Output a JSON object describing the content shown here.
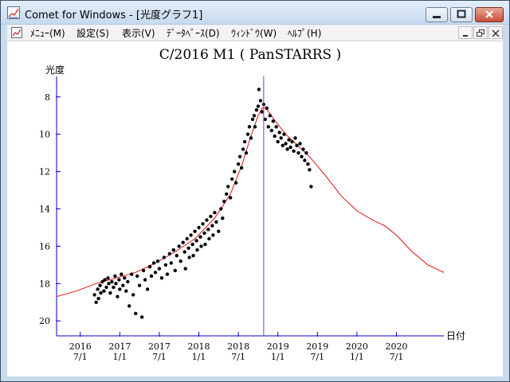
{
  "window": {
    "title": "Comet for Windows - [光度グラフ1]",
    "icon": "chart-app-icon",
    "controls": [
      "minimize-icon",
      "maximize-icon",
      "close-icon"
    ]
  },
  "menu": {
    "items": [
      "ﾒﾆｭｰ(M)",
      "設定(S)",
      "表示(V)",
      "ﾃﾞｰﾀﾍﾞｰｽ(D)",
      "ｳｨﾝﾄﾞｳ(W)",
      "ﾍﾙﾌﾟ(H)"
    ],
    "mdi_controls": [
      "mdi-minimize-icon",
      "mdi-restore-icon",
      "mdi-close-icon"
    ]
  },
  "chart_data": {
    "type": "scatter",
    "title": "C/2016 M1 ( PanSTARRS )",
    "ylabel": "光度",
    "xlabel": "日付",
    "y_inverted": true,
    "ylim": [
      20.8,
      6.9
    ],
    "xlim": [
      2016.0,
      2020.9
    ],
    "y_ticks": [
      "8",
      "10",
      "12",
      "14",
      "16",
      "18",
      "20"
    ],
    "x_tick_labels": [
      [
        "2016",
        "7/1"
      ],
      [
        "2017",
        "1/1"
      ],
      [
        "2017",
        "7/1"
      ],
      [
        "2018",
        "1/1"
      ],
      [
        "2018",
        "7/1"
      ],
      [
        "2019",
        "1/1"
      ],
      [
        "2019",
        "7/1"
      ],
      [
        "2020",
        "1/1"
      ],
      [
        "2020",
        "7/1"
      ]
    ],
    "marker_date": 2018.62,
    "colors": {
      "points": "#000000",
      "curve": "#e01010",
      "marker": "#8a2be2",
      "axes": "#0000cc"
    },
    "observations": [
      [
        2016.48,
        18.6
      ],
      [
        2016.5,
        19.0
      ],
      [
        2016.52,
        18.3
      ],
      [
        2016.53,
        18.8
      ],
      [
        2016.55,
        18.1
      ],
      [
        2016.56,
        18.5
      ],
      [
        2016.58,
        17.9
      ],
      [
        2016.6,
        18.4
      ],
      [
        2016.61,
        17.8
      ],
      [
        2016.63,
        18.2
      ],
      [
        2016.65,
        17.7
      ],
      [
        2016.66,
        18.0
      ],
      [
        2016.68,
        18.5
      ],
      [
        2016.7,
        17.9
      ],
      [
        2016.72,
        18.2
      ],
      [
        2016.74,
        17.6
      ],
      [
        2016.75,
        18.0
      ],
      [
        2016.77,
        18.7
      ],
      [
        2016.79,
        17.8
      ],
      [
        2016.8,
        18.3
      ],
      [
        2016.82,
        17.5
      ],
      [
        2016.84,
        18.1
      ],
      [
        2016.86,
        17.7
      ],
      [
        2016.88,
        18.4
      ],
      [
        2016.9,
        17.9
      ],
      [
        2016.92,
        19.2
      ],
      [
        2016.95,
        17.5
      ],
      [
        2016.97,
        18.6
      ],
      [
        2017.0,
        19.6
      ],
      [
        2017.02,
        17.6
      ],
      [
        2017.05,
        18.1
      ],
      [
        2017.08,
        19.8
      ],
      [
        2017.1,
        17.3
      ],
      [
        2017.12,
        17.8
      ],
      [
        2017.15,
        18.3
      ],
      [
        2017.18,
        17.1
      ],
      [
        2017.2,
        17.6
      ],
      [
        2017.23,
        16.9
      ],
      [
        2017.25,
        17.4
      ],
      [
        2017.28,
        16.8
      ],
      [
        2017.3,
        17.2
      ],
      [
        2017.33,
        17.7
      ],
      [
        2017.36,
        16.6
      ],
      [
        2017.38,
        17.0
      ],
      [
        2017.4,
        17.5
      ],
      [
        2017.43,
        16.4
      ],
      [
        2017.45,
        16.9
      ],
      [
        2017.48,
        16.2
      ],
      [
        2017.5,
        17.3
      ],
      [
        2017.52,
        16.5
      ],
      [
        2017.55,
        16.0
      ],
      [
        2017.57,
        16.8
      ],
      [
        2017.6,
        15.8
      ],
      [
        2017.62,
        16.3
      ],
      [
        2017.63,
        17.2
      ],
      [
        2017.65,
        15.6
      ],
      [
        2017.67,
        16.1
      ],
      [
        2017.68,
        16.6
      ],
      [
        2017.7,
        15.4
      ],
      [
        2017.72,
        15.9
      ],
      [
        2017.73,
        16.5
      ],
      [
        2017.75,
        15.2
      ],
      [
        2017.77,
        15.7
      ],
      [
        2017.78,
        16.2
      ],
      [
        2017.8,
        15.0
      ],
      [
        2017.82,
        15.5
      ],
      [
        2017.83,
        16.0
      ],
      [
        2017.85,
        14.8
      ],
      [
        2017.87,
        15.3
      ],
      [
        2017.88,
        15.9
      ],
      [
        2017.9,
        14.6
      ],
      [
        2017.92,
        15.1
      ],
      [
        2017.93,
        15.6
      ],
      [
        2017.95,
        14.4
      ],
      [
        2017.97,
        14.9
      ],
      [
        2017.98,
        15.4
      ],
      [
        2018.0,
        14.2
      ],
      [
        2018.02,
        14.7
      ],
      [
        2018.05,
        15.2
      ],
      [
        2018.08,
        14.0
      ],
      [
        2018.1,
        14.5
      ],
      [
        2018.12,
        13.6
      ],
      [
        2018.15,
        13.2
      ],
      [
        2018.17,
        12.8
      ],
      [
        2018.2,
        13.4
      ],
      [
        2018.22,
        12.4
      ],
      [
        2018.25,
        12.0
      ],
      [
        2018.27,
        12.6
      ],
      [
        2018.3,
        11.6
      ],
      [
        2018.32,
        11.2
      ],
      [
        2018.34,
        11.8
      ],
      [
        2018.36,
        10.8
      ],
      [
        2018.38,
        10.4
      ],
      [
        2018.4,
        11.0
      ],
      [
        2018.42,
        10.0
      ],
      [
        2018.44,
        9.6
      ],
      [
        2018.46,
        10.2
      ],
      [
        2018.48,
        9.2
      ],
      [
        2018.5,
        9.0
      ],
      [
        2018.51,
        9.6
      ],
      [
        2018.53,
        8.7
      ],
      [
        2018.55,
        8.5
      ],
      [
        2018.56,
        7.6
      ],
      [
        2018.58,
        8.2
      ],
      [
        2018.6,
        8.8
      ],
      [
        2018.62,
        8.4
      ],
      [
        2018.64,
        9.2
      ],
      [
        2018.66,
        8.6
      ],
      [
        2018.68,
        9.6
      ],
      [
        2018.7,
        9.0
      ],
      [
        2018.72,
        9.8
      ],
      [
        2018.74,
        9.3
      ],
      [
        2018.76,
        10.1
      ],
      [
        2018.78,
        9.6
      ],
      [
        2018.8,
        10.4
      ],
      [
        2018.82,
        9.9
      ],
      [
        2018.84,
        10.2
      ],
      [
        2018.86,
        10.6
      ],
      [
        2018.88,
        10.0
      ],
      [
        2018.9,
        10.5
      ],
      [
        2018.92,
        10.8
      ],
      [
        2018.94,
        10.3
      ],
      [
        2018.96,
        10.7
      ],
      [
        2018.98,
        10.4
      ],
      [
        2019.0,
        10.9
      ],
      [
        2019.02,
        10.2
      ],
      [
        2019.04,
        10.6
      ],
      [
        2019.06,
        11.0
      ],
      [
        2019.08,
        10.5
      ],
      [
        2019.1,
        11.2
      ],
      [
        2019.12,
        10.8
      ],
      [
        2019.14,
        11.4
      ],
      [
        2019.16,
        11.0
      ],
      [
        2019.18,
        11.6
      ],
      [
        2019.2,
        11.9
      ],
      [
        2019.22,
        12.8
      ]
    ],
    "fit_curve": [
      [
        2016.0,
        18.7
      ],
      [
        2016.25,
        18.4
      ],
      [
        2016.5,
        18.0
      ],
      [
        2016.75,
        17.7
      ],
      [
        2017.0,
        17.4
      ],
      [
        2017.25,
        16.9
      ],
      [
        2017.5,
        16.3
      ],
      [
        2017.75,
        15.6
      ],
      [
        2018.0,
        14.5
      ],
      [
        2018.2,
        13.2
      ],
      [
        2018.35,
        11.6
      ],
      [
        2018.45,
        10.2
      ],
      [
        2018.55,
        9.0
      ],
      [
        2018.6,
        8.6
      ],
      [
        2018.65,
        8.6
      ],
      [
        2018.75,
        9.2
      ],
      [
        2018.9,
        10.0
      ],
      [
        2019.05,
        10.6
      ],
      [
        2019.2,
        11.2
      ],
      [
        2019.4,
        12.2
      ],
      [
        2019.6,
        13.3
      ],
      [
        2019.8,
        14.1
      ],
      [
        2020.0,
        14.6
      ],
      [
        2020.15,
        14.9
      ],
      [
        2020.3,
        15.4
      ],
      [
        2020.5,
        16.3
      ],
      [
        2020.7,
        17.0
      ],
      [
        2020.9,
        17.4
      ]
    ]
  }
}
